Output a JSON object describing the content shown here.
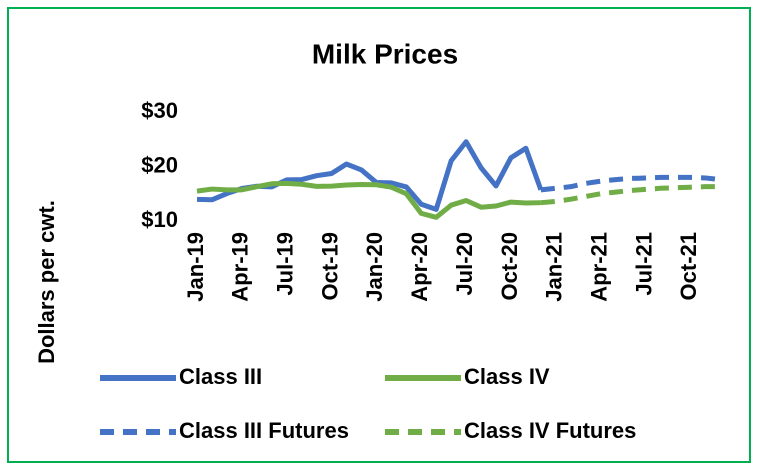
{
  "chart_data": {
    "type": "line",
    "title": "Milk Prices",
    "y_label": "Dollars per cwt.",
    "categories": [
      "Jan-19",
      null,
      null,
      "Apr-19",
      null,
      null,
      "Jul-19",
      null,
      null,
      "Oct-19",
      null,
      null,
      "Jan-20",
      null,
      null,
      "Apr-20",
      null,
      null,
      "Jul-20",
      null,
      null,
      "Oct-20",
      null,
      null,
      "Jan-21",
      null,
      null,
      "Apr-21",
      null,
      null,
      "Jul-21",
      null,
      null,
      "Oct-21",
      null,
      null
    ],
    "ylim": [
      10,
      30
    ],
    "yticks": [
      {
        "value": 10,
        "label": "$10"
      },
      {
        "value": 20,
        "label": "$20"
      },
      {
        "value": 30,
        "label": "$30"
      }
    ],
    "series": [
      {
        "name": "Class III",
        "color": "#4472c4",
        "dashed": false,
        "values": [
          13.96,
          13.89,
          15.04,
          15.96,
          16.38,
          16.27,
          17.55,
          17.6,
          18.31,
          18.72,
          20.45,
          19.37,
          17.05,
          17.0,
          16.25,
          13.07,
          12.14,
          21.04,
          24.54,
          19.77,
          16.43,
          21.61,
          23.34,
          15.72,
          null,
          null,
          null,
          null,
          null,
          null,
          null,
          null,
          null,
          null,
          null,
          null
        ]
      },
      {
        "name": "Class IV",
        "color": "#70ad47",
        "dashed": false,
        "values": [
          15.48,
          15.86,
          15.71,
          15.72,
          16.29,
          16.83,
          16.9,
          16.74,
          16.35,
          16.39,
          16.6,
          16.7,
          16.65,
          16.2,
          15.0,
          11.4,
          10.67,
          12.9,
          13.76,
          12.53,
          12.75,
          13.47,
          13.3,
          13.36,
          null,
          null,
          null,
          null,
          null,
          null,
          null,
          null,
          null,
          null,
          null,
          null
        ]
      },
      {
        "name": "Class III Futures",
        "color": "#4472c4",
        "dashed": true,
        "values": [
          null,
          null,
          null,
          null,
          null,
          null,
          null,
          null,
          null,
          null,
          null,
          null,
          null,
          null,
          null,
          null,
          null,
          null,
          null,
          null,
          null,
          null,
          null,
          15.72,
          16.0,
          16.3,
          16.9,
          17.3,
          17.6,
          17.8,
          17.9,
          18.0,
          18.0,
          18.0,
          17.9,
          17.6
        ]
      },
      {
        "name": "Class IV Futures",
        "color": "#70ad47",
        "dashed": true,
        "values": [
          null,
          null,
          null,
          null,
          null,
          null,
          null,
          null,
          null,
          null,
          null,
          null,
          null,
          null,
          null,
          null,
          null,
          null,
          null,
          null,
          null,
          null,
          null,
          13.36,
          13.6,
          14.0,
          14.5,
          15.0,
          15.3,
          15.6,
          15.8,
          16.0,
          16.1,
          16.2,
          16.3,
          16.3
        ]
      }
    ]
  }
}
